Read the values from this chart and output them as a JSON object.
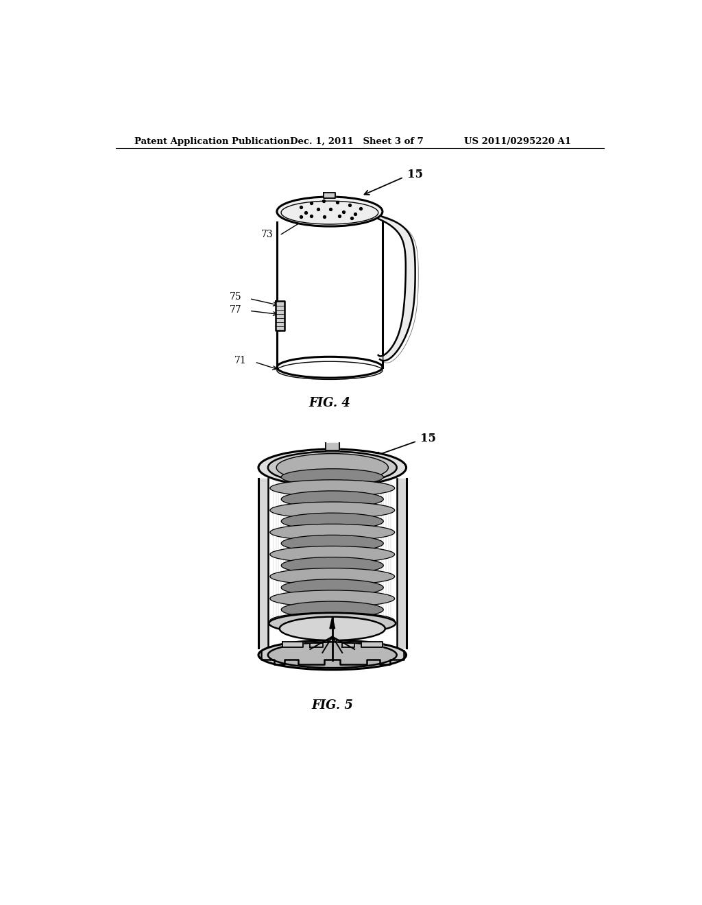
{
  "bg_color": "#ffffff",
  "header_left": "Patent Application Publication",
  "header_mid": "Dec. 1, 2011   Sheet 3 of 7",
  "header_right": "US 2011/0295220 A1",
  "fig4_label": "FIG. 4",
  "fig5_label": "FIG. 5",
  "ref15_4": "15",
  "ref73": "73",
  "ref75": "75",
  "ref77": "77",
  "ref71": "71",
  "ref15_5": "15",
  "line_color": "#000000",
  "text_color": "#000000",
  "lw_main": 1.8,
  "lw_thin": 1.0,
  "lw_thick": 2.2
}
